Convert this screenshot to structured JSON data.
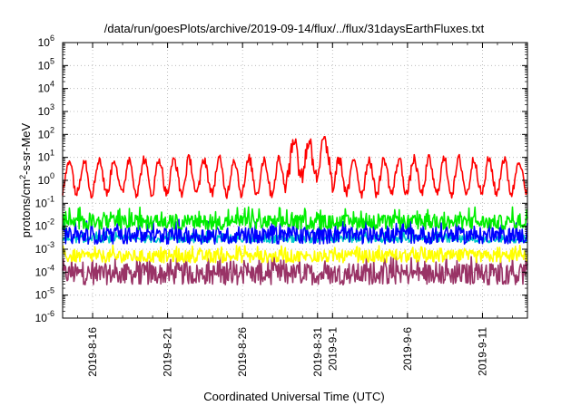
{
  "chart_data": {
    "type": "line",
    "title": "/data/run/goesPlots/archive/2019-09-14/flux/../flux/31daysEarthFluxes.txt",
    "xlabel": "Coordinated Universal Time (UTC)",
    "ylabel": "protons/cm2-s-sr-MeV",
    "ylabel_parts": {
      "pre": "protons/cm",
      "sup": "2",
      "post": "-s-sr-MeV"
    },
    "yscale": "log",
    "ylim": [
      1e-06,
      1000000.0
    ],
    "y_ticks": [
      {
        "base": "10",
        "exp": "-6"
      },
      {
        "base": "10",
        "exp": "-5"
      },
      {
        "base": "10",
        "exp": "-4"
      },
      {
        "base": "10",
        "exp": "-3"
      },
      {
        "base": "10",
        "exp": "-2"
      },
      {
        "base": "10",
        "exp": "-1"
      },
      {
        "base": "10",
        "exp": "0"
      },
      {
        "base": "10",
        "exp": "1"
      },
      {
        "base": "10",
        "exp": "2"
      },
      {
        "base": "10",
        "exp": "3"
      },
      {
        "base": "10",
        "exp": "4"
      },
      {
        "base": "10",
        "exp": "5"
      },
      {
        "base": "10",
        "exp": "6"
      }
    ],
    "xlim": [
      "2019-08-14",
      "2019-09-14"
    ],
    "x_ticks": [
      {
        "label": "2019-8-16",
        "date": "2019-08-16"
      },
      {
        "label": "2019-8-21",
        "date": "2019-08-21"
      },
      {
        "label": "2019-8-26",
        "date": "2019-08-26"
      },
      {
        "label": "2019-8-31",
        "date": "2019-08-31"
      },
      {
        "label": "2019-9-1",
        "date": "2019-09-01"
      },
      {
        "label": "2019-9-6",
        "date": "2019-09-06"
      },
      {
        "label": "2019-9-11",
        "date": "2019-09-11"
      }
    ],
    "grid": true,
    "series": [
      {
        "color": "#ff0000",
        "min": 0.1,
        "max": 80,
        "median": 1.5
      },
      {
        "color": "#00ee00",
        "min": 0.005,
        "max": 0.07,
        "median": 0.012
      },
      {
        "color": "#0000ff",
        "min": 0.001,
        "max": 0.02,
        "median": 0.003
      },
      {
        "color": "#00c8c8",
        "min": 0.0015,
        "max": 0.006,
        "median": 0.0025
      },
      {
        "color": "#ffff00",
        "min": 0.00015,
        "max": 0.0015,
        "median": 0.0004
      },
      {
        "color": "#993366",
        "min": 1e-05,
        "max": 0.0005,
        "median": 6e-05
      }
    ]
  }
}
